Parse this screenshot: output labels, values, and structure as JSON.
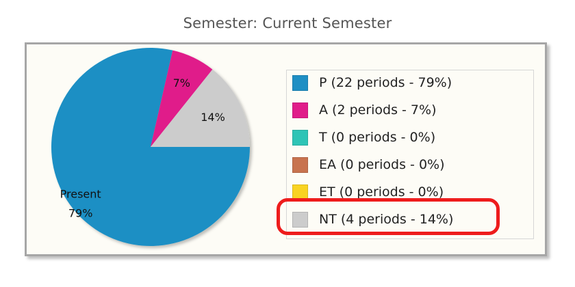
{
  "title": "Semester: Current Semester",
  "chart_data": {
    "type": "pie",
    "title": "Semester: Current Semester",
    "slices": [
      {
        "key": "P",
        "label": "P (22 periods - 79%)",
        "periods": 22,
        "percent": 79,
        "color": "#1f8fc4",
        "pie_label": "Present",
        "pie_pct": "79%"
      },
      {
        "key": "A",
        "label": "A (2 periods - 7%)",
        "periods": 2,
        "percent": 7,
        "color": "#e01c8a",
        "pie_label": "",
        "pie_pct": "7%"
      },
      {
        "key": "T",
        "label": "T (0 periods - 0%)",
        "periods": 0,
        "percent": 0,
        "color": "#2ec4b6",
        "pie_label": "",
        "pie_pct": ""
      },
      {
        "key": "EA",
        "label": "EA (0 periods - 0%)",
        "periods": 0,
        "percent": 0,
        "color": "#c8734f",
        "pie_label": "",
        "pie_pct": ""
      },
      {
        "key": "ET",
        "label": "ET (0 periods - 0%)",
        "periods": 0,
        "percent": 0,
        "color": "#f9d322",
        "pie_label": "",
        "pie_pct": ""
      },
      {
        "key": "NT",
        "label": "NT (4 periods - 14%)",
        "periods": 4,
        "percent": 14,
        "color": "#cccccc",
        "pie_label": "",
        "pie_pct": "14%"
      }
    ],
    "legend_position": "right",
    "highlighted_legend_item": "NT",
    "highlight_color": "#ee1c1c"
  }
}
